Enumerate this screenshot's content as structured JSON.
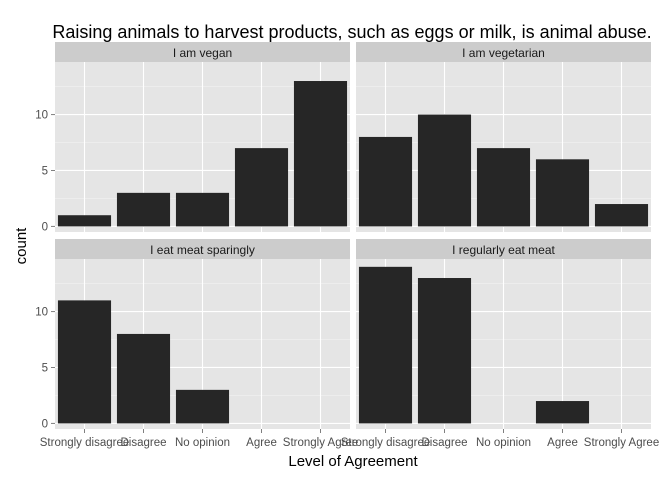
{
  "chart_data": {
    "type": "bar",
    "title": "Raising animals to harvest products, such as eggs or milk, is animal abuse.",
    "xlabel": "Level of Agreement",
    "ylabel": "count",
    "categories": [
      "Strongly disagree",
      "Disagree",
      "No opinion",
      "Agree",
      "Strongly Agree"
    ],
    "yticks": [
      0,
      5,
      10
    ],
    "ylim": [
      -0.5,
      14.7
    ],
    "grid": true,
    "facets": [
      {
        "name": "I am vegan",
        "values": [
          1,
          3,
          3,
          7,
          13
        ]
      },
      {
        "name": "I am vegetarian",
        "values": [
          8,
          10,
          7,
          6,
          2
        ]
      },
      {
        "name": "I eat meat sparingly",
        "values": [
          11,
          8,
          3,
          0,
          0
        ]
      },
      {
        "name": "I regularly eat meat",
        "values": [
          14,
          13,
          0,
          2,
          0
        ]
      }
    ],
    "colors": {
      "bar": "#262626",
      "panel_background": "#e5e5e5",
      "strip_background": "#cccccc",
      "grid_major": "#ffffff",
      "grid_minor": "#f2f2f2"
    }
  }
}
